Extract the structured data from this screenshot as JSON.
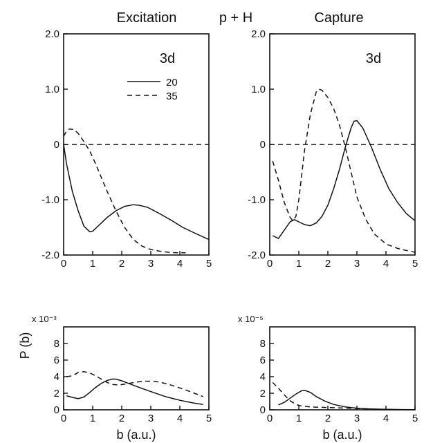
{
  "page": {
    "title_left": "Excitation",
    "title_center": "p + H",
    "title_right": "Capture",
    "ylabel_bottom": "P (b)"
  },
  "chart_data": [
    {
      "id": "excitation-top",
      "type": "line",
      "panel_label": "3d",
      "xlabel": "",
      "ylabel": "",
      "xlim": [
        0,
        5
      ],
      "ylim": [
        -2.0,
        2.0
      ],
      "xticks": [
        "0",
        "1",
        "2",
        "3",
        "4",
        "5"
      ],
      "yticks": [
        "-2.0",
        "-1.0",
        "0",
        "1.0",
        "2.0"
      ],
      "reference_line": 0,
      "legend": {
        "placement": "top-right"
      },
      "series": [
        {
          "name": "20",
          "style": "solid",
          "x": [
            0,
            0.1,
            0.3,
            0.5,
            0.7,
            0.9,
            1.0,
            1.2,
            1.5,
            1.8,
            2.1,
            2.4,
            2.6,
            2.9,
            3.3,
            3.7,
            4.1,
            4.5,
            5.0
          ],
          "y": [
            0.0,
            -0.35,
            -0.85,
            -1.2,
            -1.48,
            -1.58,
            -1.57,
            -1.47,
            -1.32,
            -1.2,
            -1.12,
            -1.09,
            -1.1,
            -1.14,
            -1.25,
            -1.37,
            -1.5,
            -1.6,
            -1.72
          ]
        },
        {
          "name": "35",
          "style": "dashed",
          "x": [
            0,
            0.1,
            0.2,
            0.35,
            0.5,
            0.7,
            0.9,
            1.1,
            1.3,
            1.5,
            1.8,
            2.1,
            2.4,
            2.7,
            3.0,
            3.3,
            3.6,
            3.9,
            4.2
          ],
          "y": [
            0.15,
            0.24,
            0.28,
            0.27,
            0.2,
            0.05,
            -0.12,
            -0.35,
            -0.6,
            -0.85,
            -1.2,
            -1.5,
            -1.72,
            -1.84,
            -1.9,
            -1.93,
            -1.95,
            -1.96,
            -1.96
          ]
        }
      ]
    },
    {
      "id": "capture-top",
      "type": "line",
      "panel_label": "3d",
      "xlabel": "",
      "ylabel": "",
      "xlim": [
        0,
        5
      ],
      "ylim": [
        -2.0,
        2.0
      ],
      "xticks": [
        "0",
        "1",
        "2",
        "3",
        "4",
        "5"
      ],
      "yticks": [
        "-2.0",
        "-1.0",
        "0",
        "1.0",
        "2.0"
      ],
      "reference_line": 0,
      "series": [
        {
          "name": "20",
          "style": "solid",
          "x": [
            0.1,
            0.3,
            0.5,
            0.7,
            0.85,
            1.0,
            1.2,
            1.4,
            1.6,
            1.8,
            2.0,
            2.2,
            2.4,
            2.6,
            2.8,
            2.9,
            3.0,
            3.2,
            3.5,
            3.8,
            4.1,
            4.4,
            4.7,
            5.0
          ],
          "y": [
            -1.65,
            -1.7,
            -1.55,
            -1.4,
            -1.36,
            -1.4,
            -1.45,
            -1.47,
            -1.42,
            -1.3,
            -1.1,
            -0.8,
            -0.45,
            -0.05,
            0.3,
            0.42,
            0.43,
            0.3,
            -0.05,
            -0.45,
            -0.8,
            -1.05,
            -1.25,
            -1.38
          ]
        },
        {
          "name": "35",
          "style": "dashed",
          "x": [
            0.1,
            0.3,
            0.5,
            0.7,
            0.8,
            0.9,
            1.0,
            1.1,
            1.2,
            1.4,
            1.6,
            1.7,
            1.8,
            2.0,
            2.2,
            2.4,
            2.6,
            2.8,
            3.0,
            3.3,
            3.6,
            4.0,
            4.4,
            4.8,
            5.0
          ],
          "y": [
            -0.3,
            -0.65,
            -1.05,
            -1.32,
            -1.38,
            -1.3,
            -1.0,
            -0.55,
            -0.1,
            0.55,
            0.95,
            1.0,
            0.98,
            0.85,
            0.65,
            0.35,
            -0.05,
            -0.5,
            -0.95,
            -1.35,
            -1.62,
            -1.8,
            -1.88,
            -1.93,
            -1.95
          ]
        }
      ]
    },
    {
      "id": "excitation-bottom",
      "type": "line",
      "scale_label": "x 10⁻³",
      "xlabel": "b (a.u.)",
      "ylabel": "P (b)",
      "xlim": [
        0,
        5
      ],
      "ylim": [
        0,
        10
      ],
      "xticks": [
        "0",
        "1",
        "2",
        "3",
        "4",
        "5"
      ],
      "yticks": [
        "0",
        "2",
        "4",
        "6",
        "8"
      ],
      "series": [
        {
          "name": "20",
          "style": "solid",
          "x": [
            0.1,
            0.3,
            0.5,
            0.7,
            0.9,
            1.1,
            1.3,
            1.5,
            1.7,
            1.8,
            2.0,
            2.3,
            2.6,
            3.0,
            3.5,
            4.0,
            4.5,
            4.8
          ],
          "y": [
            1.7,
            1.5,
            1.35,
            1.55,
            2.1,
            2.7,
            3.2,
            3.55,
            3.72,
            3.7,
            3.5,
            3.1,
            2.7,
            2.2,
            1.6,
            1.15,
            0.8,
            0.65
          ]
        },
        {
          "name": "35",
          "style": "dashed",
          "x": [
            0.1,
            0.3,
            0.5,
            0.7,
            0.9,
            1.1,
            1.3,
            1.5,
            1.7,
            1.9,
            2.2,
            2.5,
            2.8,
            3.0,
            3.3,
            3.6,
            3.9,
            4.2,
            4.5,
            4.8
          ],
          "y": [
            4.0,
            4.1,
            4.5,
            4.6,
            4.45,
            4.1,
            3.7,
            3.3,
            3.05,
            3.0,
            3.15,
            3.35,
            3.45,
            3.45,
            3.35,
            3.1,
            2.75,
            2.4,
            2.0,
            1.6
          ]
        }
      ]
    },
    {
      "id": "capture-bottom",
      "type": "line",
      "scale_label": "x 10⁻⁵",
      "xlabel": "b (a.u.)",
      "ylabel": "",
      "xlim": [
        0,
        5
      ],
      "ylim": [
        0,
        10
      ],
      "xticks": [
        "0",
        "1",
        "2",
        "3",
        "4",
        "5"
      ],
      "yticks": [
        "0",
        "2",
        "4",
        "6",
        "8"
      ],
      "series": [
        {
          "name": "20",
          "style": "solid",
          "x": [
            0.3,
            0.5,
            0.7,
            0.9,
            1.1,
            1.2,
            1.4,
            1.6,
            1.9,
            2.2,
            2.6,
            3.0,
            3.5,
            4.0,
            4.5,
            5.0
          ],
          "y": [
            0.6,
            0.9,
            1.4,
            1.9,
            2.3,
            2.35,
            2.1,
            1.6,
            1.05,
            0.65,
            0.35,
            0.2,
            0.1,
            0.06,
            0.03,
            0.02
          ]
        },
        {
          "name": "35",
          "style": "dashed",
          "x": [
            0.1,
            0.3,
            0.5,
            0.7,
            0.9,
            1.1,
            1.4,
            1.8,
            2.3,
            2.8,
            3.3,
            3.8,
            4.3,
            4.8
          ],
          "y": [
            3.3,
            2.6,
            1.8,
            1.1,
            0.65,
            0.45,
            0.35,
            0.3,
            0.25,
            0.18,
            0.12,
            0.06,
            0.03,
            0.01
          ]
        }
      ]
    }
  ]
}
